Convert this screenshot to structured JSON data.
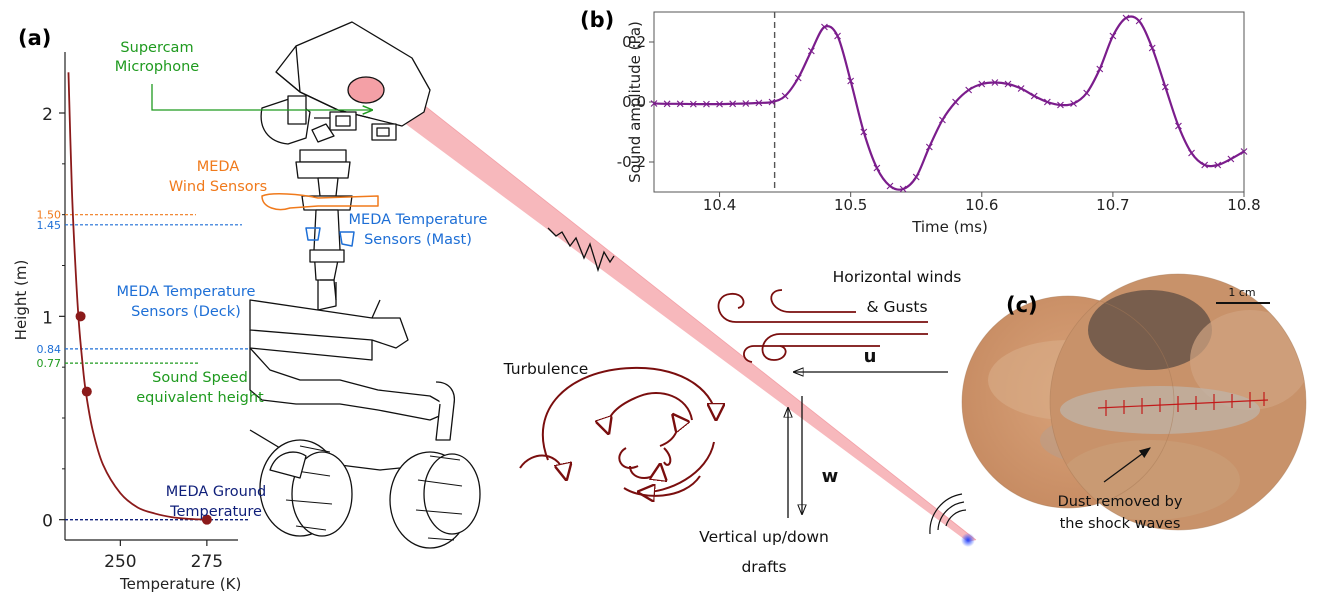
{
  "colors": {
    "temperature_curve": "#8b1a1a",
    "supercam": "#1f9a1f",
    "wind_sensors": "#f07a1c",
    "temp_sensors": "#1e6fd6",
    "ground": "#0f1f7a",
    "sound_trace": "#7b1d8c",
    "laser_beam": "#f4a0a6",
    "arrows_dark_red": "#7a0e0e"
  },
  "panel_a": {
    "label": "(a)",
    "xlabel": "Temperature (K)",
    "ylabel": "Height (m)",
    "ref_lines": [
      {
        "value": "1.50",
        "name": "wind",
        "color": "#f07a1c"
      },
      {
        "value": "1.45",
        "name": "mast",
        "color": "#1e6fd6"
      },
      {
        "value": "0.84",
        "name": "deck",
        "color": "#1e6fd6"
      },
      {
        "value": "0.77",
        "name": "sound",
        "color": "#1f9a1f"
      },
      {
        "value": "",
        "name": "ground",
        "color": "#0f1f7a"
      }
    ],
    "labels": {
      "supercam": [
        "Supercam",
        "Microphone"
      ],
      "wind": [
        "MEDA",
        "Wind Sensors"
      ],
      "mast": [
        "MEDA Temperature",
        "Sensors (Mast)"
      ],
      "deck": [
        "MEDA Temperature",
        "Sensors (Deck)"
      ],
      "sound": [
        "Sound Speed",
        "equivalent height"
      ],
      "ground": [
        "MEDA Ground",
        "Temperature"
      ]
    }
  },
  "panel_b": {
    "label": "(b)",
    "xlabel": "Time (ms)",
    "ylabel": "Sound amplitude (Pa)"
  },
  "panel_c": {
    "label": "(c)",
    "scale": "1 cm",
    "annotation": [
      "Dust removed by",
      "the shock waves"
    ]
  },
  "middle": {
    "winds": [
      "Horizontal winds",
      "& Gusts"
    ],
    "u_label": "u",
    "w_label": "w",
    "turbulence": "Turbulence",
    "drafts": [
      "Vertical up/down",
      "drafts"
    ]
  },
  "chart_data": [
    {
      "type": "line",
      "title": "",
      "xlabel": "Temperature (K)",
      "ylabel": "Height (m)",
      "xlim": [
        234,
        284
      ],
      "ylim": [
        -0.1,
        2.3
      ],
      "x_ticks": [
        250,
        275
      ],
      "y_ticks": [
        0,
        1,
        2
      ],
      "series": [
        {
          "x": [
            235,
            236,
            237,
            238,
            239,
            240,
            242,
            245,
            250,
            255,
            260,
            265,
            270,
            275
          ],
          "y": [
            2.2,
            1.62,
            1.25,
            0.97,
            0.78,
            0.63,
            0.44,
            0.27,
            0.13,
            0.06,
            0.03,
            0.012,
            0.004,
            0.0
          ]
        }
      ],
      "markers": [
        {
          "x": 238.5,
          "y": 1.0
        },
        {
          "x": 240.3,
          "y": 0.63
        },
        {
          "x": 275,
          "y": 0.0
        }
      ]
    },
    {
      "type": "line",
      "title": "",
      "xlabel": "Time (ms)",
      "ylabel": "Sound amplitude (Pa)",
      "xlim": [
        10.35,
        10.8
      ],
      "ylim": [
        -0.3,
        0.3
      ],
      "x_ticks": [
        10.4,
        10.5,
        10.6,
        10.7,
        10.8
      ],
      "y_ticks": [
        -0.2,
        0.0,
        0.2
      ],
      "vline": 10.442,
      "series": [
        {
          "x": [
            10.35,
            10.36,
            10.37,
            10.38,
            10.39,
            10.4,
            10.41,
            10.42,
            10.43,
            10.44,
            10.45,
            10.46,
            10.47,
            10.48,
            10.49,
            10.5,
            10.51,
            10.52,
            10.53,
            10.54,
            10.55,
            10.56,
            10.57,
            10.58,
            10.59,
            10.6,
            10.61,
            10.62,
            10.63,
            10.64,
            10.65,
            10.66,
            10.67,
            10.68,
            10.69,
            10.7,
            10.71,
            10.72,
            10.73,
            10.74,
            10.75,
            10.76,
            10.77,
            10.78,
            10.79,
            10.8
          ],
          "y": [
            -0.005,
            -0.006,
            -0.006,
            -0.007,
            -0.007,
            -0.007,
            -0.006,
            -0.005,
            -0.003,
            0.0,
            0.02,
            0.08,
            0.17,
            0.25,
            0.22,
            0.07,
            -0.1,
            -0.22,
            -0.28,
            -0.29,
            -0.25,
            -0.15,
            -0.06,
            0.0,
            0.04,
            0.06,
            0.065,
            0.06,
            0.045,
            0.02,
            0.0,
            -0.01,
            -0.005,
            0.03,
            0.11,
            0.22,
            0.28,
            0.27,
            0.18,
            0.05,
            -0.08,
            -0.17,
            -0.21,
            -0.21,
            -0.19,
            -0.165
          ]
        }
      ]
    }
  ]
}
